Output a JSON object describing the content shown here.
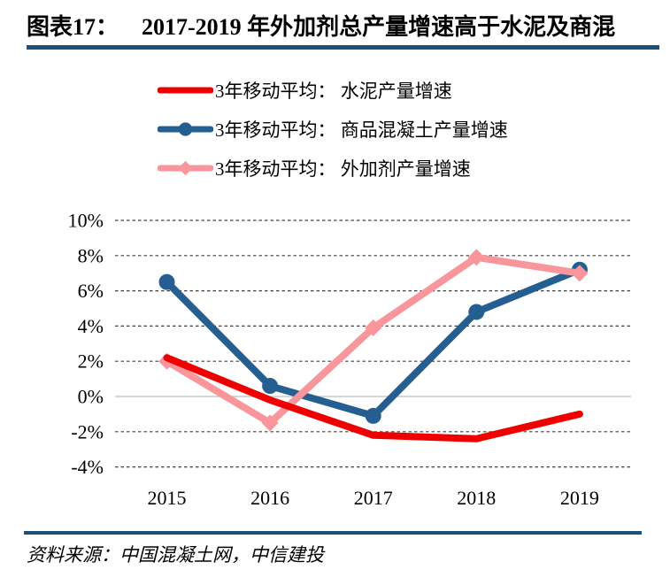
{
  "header": {
    "tag": "图表17：",
    "title": "2017-2019 年外加剂总产量增速高于水泥及商混"
  },
  "chart_data": {
    "type": "line",
    "title": "2017-2019 年外加剂总产量增速高于水泥及商混",
    "categories": [
      "2015",
      "2016",
      "2017",
      "2018",
      "2019"
    ],
    "series": [
      {
        "name": "3年移动平均： 水泥产量增速",
        "color": "#EE0000",
        "marker": "none",
        "values": [
          2.2,
          -0.2,
          -2.2,
          -2.4,
          -1.0
        ]
      },
      {
        "name": "3年移动平均： 商品混凝土产量增速",
        "color": "#255E91",
        "marker": "circle",
        "values": [
          6.5,
          0.6,
          -1.1,
          4.8,
          7.2
        ]
      },
      {
        "name": "3年移动平均： 外加剂产量增速",
        "color": "#F8969C",
        "marker": "diamond",
        "values": [
          2.0,
          -1.5,
          3.9,
          7.9,
          7.0
        ]
      }
    ],
    "ylim": [
      -4,
      10
    ],
    "yticks": [
      {
        "value": 10,
        "label": "10%"
      },
      {
        "value": 8,
        "label": "8%"
      },
      {
        "value": 6,
        "label": "6%"
      },
      {
        "value": 4,
        "label": "4%"
      },
      {
        "value": 2,
        "label": "2%"
      },
      {
        "value": 0,
        "label": "0%"
      },
      {
        "value": -2,
        "label": "-2%"
      },
      {
        "value": -4,
        "label": "-4%"
      }
    ],
    "grid": "horizontal-dashed",
    "zero_line_color": "#C8C8C8",
    "legend_position": "top"
  },
  "source": {
    "label": "资料来源：",
    "text": "中国混凝土网，中信建投"
  },
  "colors": {
    "rule": "#1F4E79",
    "grid": "#404040"
  }
}
